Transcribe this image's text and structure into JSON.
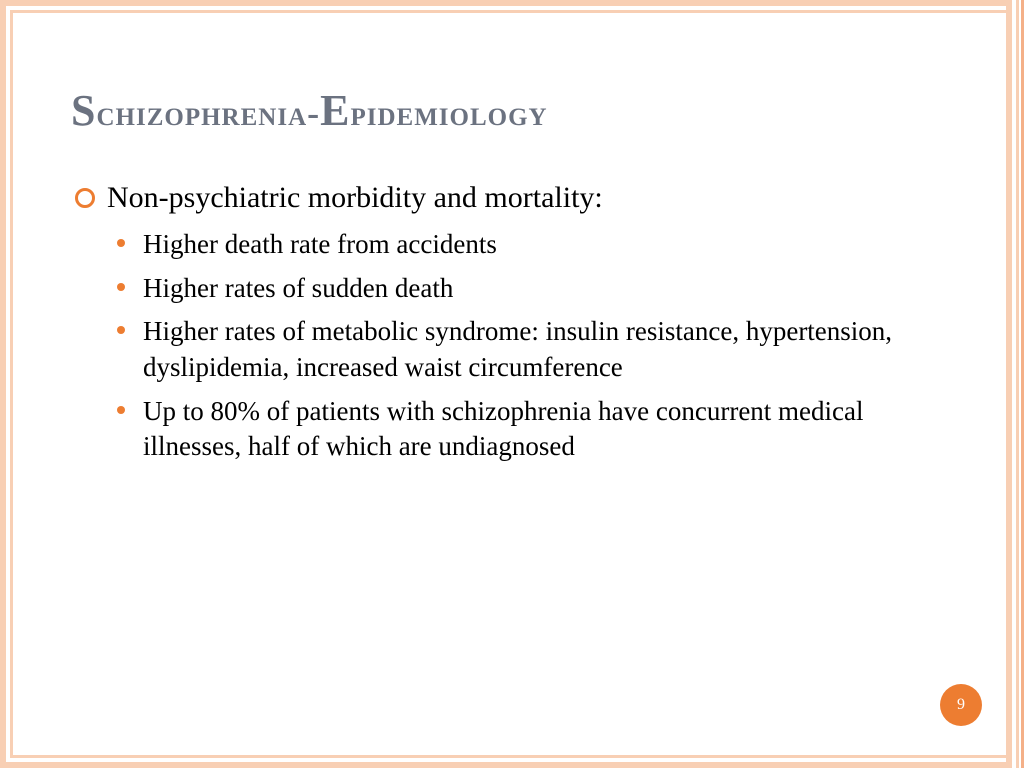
{
  "title": {
    "word1_cap": "S",
    "word1_rest": "chizophrenia",
    "sep": "-",
    "word2_cap": "E",
    "word2_rest": "pidemiology"
  },
  "main_item": "Non-psychiatric morbidity and mortality:",
  "sub_items": [
    "Higher death rate from accidents",
    "Higher rates of sudden death",
    "Higher rates of metabolic syndrome: insulin resistance, hypertension, dyslipidemia, increased waist circumference",
    "Up to 80% of patients with schizophrenia have concurrent medical illnesses, half of which are undiagnosed"
  ],
  "page_number": "9",
  "colors": {
    "accent": "#ed7d31",
    "border": "#f8cfb4",
    "title": "#6b7280",
    "text": "#000000",
    "background": "#ffffff"
  }
}
